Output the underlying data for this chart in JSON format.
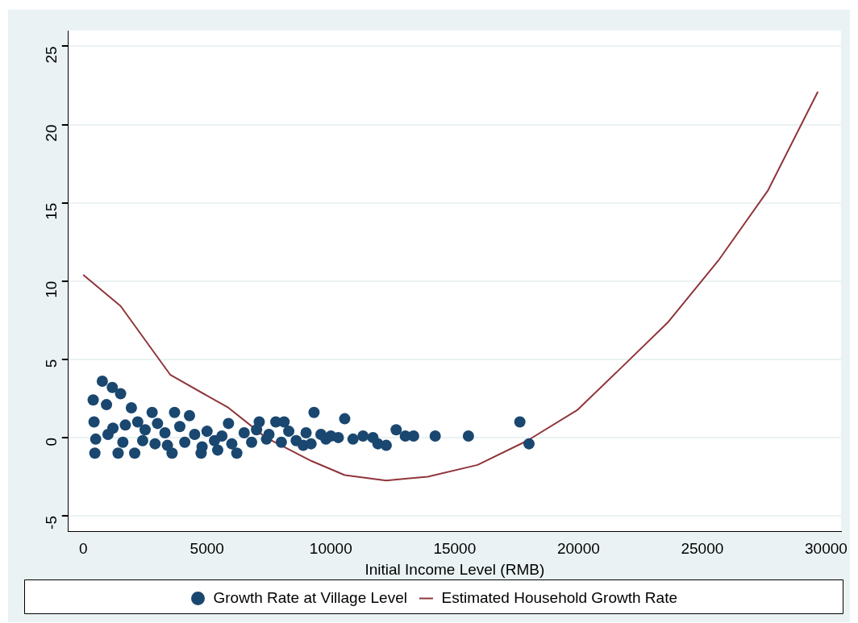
{
  "chart_data": {
    "type": "scatter",
    "xlabel": "Initial Income Level (RMB)",
    "xlim": [
      -600,
      30600
    ],
    "xticks": [
      0,
      5000,
      10000,
      15000,
      20000,
      25000,
      30000
    ],
    "ylim": [
      -6,
      26
    ],
    "yticks": [
      -5,
      0,
      5,
      10,
      15,
      20,
      25
    ],
    "grid": "y",
    "legend": "bottom",
    "marker": "circle",
    "series": [
      {
        "name": "Growth Rate at Village Level",
        "color": "#1a476f",
        "x": [
          771,
          1173,
          1509,
          402,
          939,
          436,
          503,
          470,
          1408,
          2078,
          3587,
          4291,
          3688,
          2782,
          1944,
          9320,
          10560,
          6202,
          4760,
          5431,
          5866,
          7107,
          7777,
          8112,
          8884,
          10895,
          11901,
          12236,
          12638,
          13007,
          13342,
          14214,
          15555,
          17633,
          18002,
          1200,
          1700,
          2200,
          2500,
          3000,
          3300,
          3900,
          4500,
          5000,
          5600,
          6500,
          7000,
          7500,
          8300,
          9000,
          9600,
          10000,
          1000,
          1600,
          2400,
          2900,
          3400,
          4100,
          4800,
          5300,
          6000,
          6800,
          7400,
          8000,
          8600,
          9200,
          9800,
          10300,
          11300,
          11700
        ],
        "values": [
          3.6,
          3.2,
          2.8,
          2.4,
          2.1,
          1.0,
          -0.1,
          -1.0,
          -1.0,
          -1.0,
          -1.0,
          1.4,
          1.6,
          1.6,
          1.9,
          1.6,
          1.2,
          -1.0,
          -1.0,
          -0.8,
          0.9,
          1.0,
          1.0,
          1.0,
          -0.5,
          -0.1,
          -0.4,
          -0.5,
          0.5,
          0.1,
          0.1,
          0.1,
          0.1,
          1.0,
          -0.4,
          0.6,
          0.8,
          1.0,
          0.5,
          0.9,
          0.3,
          0.7,
          0.2,
          0.4,
          0.1,
          0.3,
          0.5,
          0.2,
          0.4,
          0.3,
          0.2,
          0.1,
          0.2,
          -0.3,
          -0.2,
          -0.4,
          -0.5,
          -0.3,
          -0.6,
          -0.2,
          -0.4,
          -0.3,
          -0.1,
          -0.3,
          -0.2,
          -0.4,
          -0.1,
          0.0,
          0.1,
          0.0
        ]
      },
      {
        "name": "Estimated Household Growth Rate",
        "type": "line",
        "color": "#90353b",
        "marker": "none",
        "x": [
          0,
          1509,
          3520,
          5866,
          7375,
          9219,
          10560,
          12236,
          13912,
          15924,
          17935,
          19946,
          21622,
          23634,
          25645,
          27657,
          29668
        ],
        "values": [
          10.4,
          8.4,
          4.0,
          1.9,
          0,
          -1.5,
          -2.4,
          -2.75,
          -2.5,
          -1.75,
          -0.2,
          1.75,
          4.3,
          7.4,
          11.3,
          15.8,
          22.1
        ]
      }
    ]
  }
}
